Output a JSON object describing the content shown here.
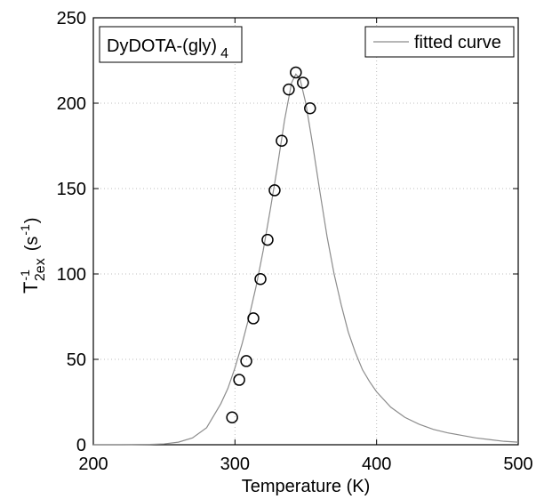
{
  "chart_data": {
    "type": "scatter",
    "xlabel": "Temperature (K)",
    "ylabel_parts": {
      "main": "T",
      "superscript": "-1",
      "subscript": "2ex",
      "unit_open": "(s",
      "unit_superscript": "-1",
      "unit_close": ")"
    },
    "annotation": {
      "main": "DyDOTA-(gly)",
      "subscript": "4"
    },
    "xlim": [
      200,
      500
    ],
    "ylim": [
      0,
      250
    ],
    "x_ticks": [
      200,
      300,
      400,
      500
    ],
    "y_ticks": [
      0,
      50,
      100,
      150,
      200,
      250
    ],
    "grid": "dotted at x=300 and x=400, y=50..200",
    "legend": {
      "position": "top-right",
      "entry": "fitted curve"
    },
    "series": [
      {
        "name": "fitted curve",
        "kind": "line",
        "color": "#8c8c8c",
        "x": [
          200,
          220,
          240,
          250,
          260,
          270,
          280,
          290,
          295,
          300,
          305,
          310,
          315,
          320,
          325,
          330,
          335,
          340,
          343,
          346,
          350,
          355,
          360,
          365,
          370,
          375,
          380,
          385,
          390,
          395,
          400,
          410,
          420,
          430,
          440,
          450,
          460,
          470,
          480,
          490,
          500
        ],
        "y": [
          0,
          0,
          0.2,
          0.5,
          1.5,
          4,
          10,
          24,
          33,
          45,
          59,
          75,
          93,
          114,
          138,
          163,
          190,
          212,
          217,
          214,
          200,
          175,
          148,
          122,
          100,
          82,
          66,
          54,
          44,
          37,
          31,
          22,
          16,
          12,
          9,
          7,
          5.5,
          4,
          3,
          2,
          1.5
        ]
      },
      {
        "name": "",
        "kind": "markers",
        "marker": "circle",
        "color": "#000000",
        "x": [
          298,
          303,
          308,
          313,
          318,
          323,
          328,
          333,
          338,
          343,
          348,
          353
        ],
        "y": [
          16,
          38,
          49,
          74,
          97,
          120,
          149,
          178,
          208,
          218,
          212,
          197
        ]
      }
    ]
  },
  "colors": {
    "axis": "#000000",
    "grid": "#bdbdbd",
    "curve": "#8c8c8c",
    "marker": "#000000"
  }
}
